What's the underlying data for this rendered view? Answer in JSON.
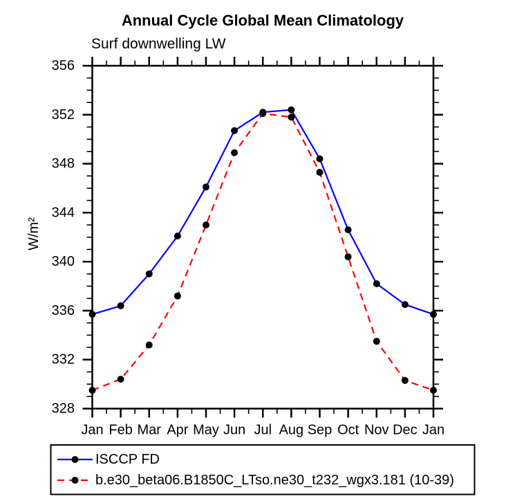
{
  "chart_data": {
    "type": "line",
    "title": "Annual Cycle Global Mean Climatology",
    "subtitle": "Surf downwelling LW",
    "xlabel": "",
    "ylabel": "W/m²",
    "categories": [
      "Jan",
      "Feb",
      "Mar",
      "Apr",
      "May",
      "Jun",
      "Jul",
      "Aug",
      "Sep",
      "Oct",
      "Nov",
      "Dec",
      "Jan"
    ],
    "ylim": [
      328,
      356
    ],
    "ytick_major_step": 4,
    "ytick_minor_step": 1,
    "ytick_labels": [
      "328",
      "332",
      "336",
      "340",
      "344",
      "348",
      "352",
      "356"
    ],
    "grid": false,
    "legend_position": "bottom-left-box",
    "series": [
      {
        "name": "ISCCP FD",
        "color": "#0000ff",
        "line_style": "solid",
        "marker": "filled-circle",
        "marker_color": "#000000",
        "values": [
          335.7,
          336.4,
          339.0,
          342.1,
          346.1,
          350.7,
          352.2,
          352.4,
          348.4,
          342.6,
          338.2,
          336.5,
          335.7
        ]
      },
      {
        "name": "b.e30_beta06.B1850C_LTso.ne30_t232_wgx3.181 (10-39)",
        "color": "#ff0000",
        "line_style": "dashed",
        "marker": "filled-circle",
        "marker_color": "#000000",
        "values": [
          329.5,
          330.4,
          333.2,
          337.2,
          343.0,
          348.9,
          352.1,
          351.8,
          347.3,
          340.4,
          333.5,
          330.3,
          329.5
        ]
      }
    ],
    "colors": {
      "axis": "#000000",
      "background": "#ffffff",
      "series1": "#0000ff",
      "series2": "#ff0000",
      "marker": "#000000"
    }
  }
}
